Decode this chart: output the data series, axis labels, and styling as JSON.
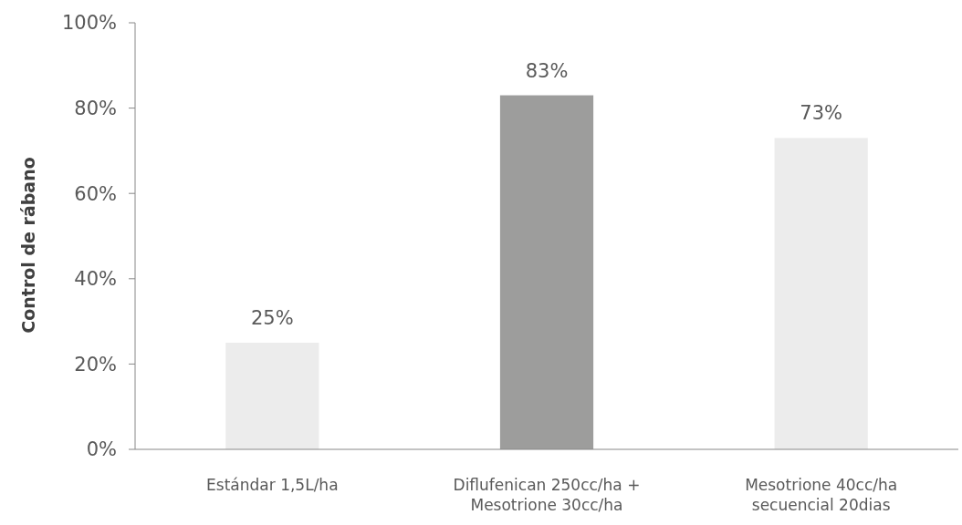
{
  "chart_data": {
    "type": "bar",
    "ylabel": "Control de rábano",
    "categories": [
      "Estándar 1,5L/ha",
      "Diflufenican 250cc/ha + Mesotrione 30cc/ha",
      "Mesotrione 40cc/ha secuencial 20dias"
    ],
    "values": [
      25,
      83,
      73
    ],
    "colors": [
      "#ececec",
      "#9d9d9c",
      "#ececec"
    ],
    "value_labels": [
      "25%",
      "83%",
      "73%"
    ],
    "ylim": [
      0,
      100
    ],
    "yticks": [
      {
        "value": 0,
        "label": "0%"
      },
      {
        "value": 20,
        "label": "20%"
      },
      {
        "value": 40,
        "label": "40%"
      },
      {
        "value": 60,
        "label": "60%"
      },
      {
        "value": 80,
        "label": "80%"
      },
      {
        "value": 100,
        "label": "100%"
      }
    ],
    "grid": false
  }
}
